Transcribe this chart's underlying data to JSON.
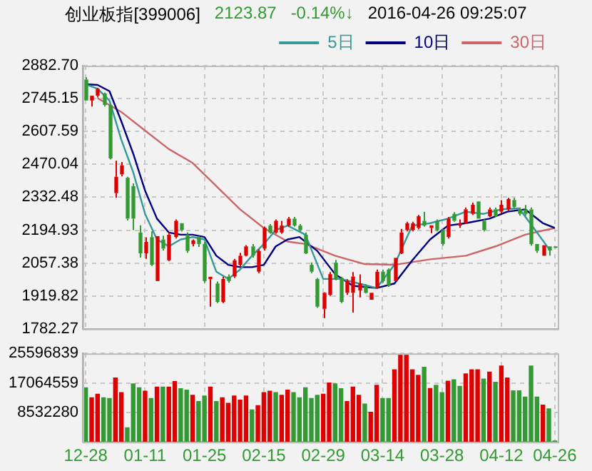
{
  "chart_data": [
    {
      "type": "candlestick",
      "title": "创业板指[399006]",
      "annotations": [
        "2123.87",
        "-0.14%↓",
        "2016-04-26 09:25:07"
      ],
      "ohlc": [
        [
          2825,
          2834,
          2737,
          2737
        ],
        [
          2737,
          2757,
          2712,
          2757
        ],
        [
          2757,
          2790,
          2750,
          2786
        ],
        [
          2766,
          2770,
          2712,
          2718
        ],
        [
          2718,
          2718,
          2490,
          2495
        ],
        [
          2350,
          2485,
          2331,
          2418
        ],
        [
          2428,
          2480,
          2420,
          2466
        ],
        [
          2414,
          2418,
          2235,
          2243
        ],
        [
          2379,
          2390,
          2195,
          2243
        ],
        [
          2185,
          2215,
          2080,
          2098
        ],
        [
          2098,
          2165,
          2075,
          2146
        ],
        [
          2166,
          2190,
          2045,
          2050
        ],
        [
          1982,
          2170,
          1982,
          2170
        ],
        [
          2156,
          2172,
          2110,
          2118
        ],
        [
          2069,
          2185,
          2065,
          2176
        ],
        [
          2166,
          2240,
          2160,
          2234
        ],
        [
          2224,
          2224,
          2190,
          2195
        ],
        [
          2176,
          2185,
          2100,
          2108
        ],
        [
          2137,
          2156,
          2127,
          2152
        ],
        [
          2166,
          2170,
          2125,
          2137
        ],
        [
          2137,
          2145,
          1975,
          1982
        ],
        [
          1990,
          2000,
          1875,
          2000
        ],
        [
          1972,
          1980,
          1890,
          1895
        ],
        [
          1895,
          2000,
          1890,
          1991
        ],
        [
          2001,
          2010,
          1975,
          1982
        ],
        [
          2001,
          2075,
          1995,
          2069
        ],
        [
          2050,
          2100,
          2040,
          2088
        ],
        [
          2088,
          2132,
          2085,
          2127
        ],
        [
          2127,
          2137,
          2080,
          2088
        ],
        [
          2021,
          2115,
          2015,
          2108
        ],
        [
          2118,
          2210,
          2110,
          2205
        ],
        [
          2214,
          2220,
          2180,
          2185
        ],
        [
          2185,
          2240,
          2180,
          2234
        ],
        [
          2185,
          2234,
          2180,
          2214
        ],
        [
          2214,
          2250,
          2210,
          2243
        ],
        [
          2243,
          2250,
          2210,
          2214
        ],
        [
          2214,
          2220,
          2190,
          2195
        ],
        [
          2176,
          2185,
          2095,
          2098
        ],
        [
          2050,
          2060,
          2015,
          2021
        ],
        [
          1991,
          1995,
          1870,
          1875
        ],
        [
          1866,
          1935,
          1827,
          1933
        ],
        [
          1924,
          2020,
          1920,
          2011
        ],
        [
          2059,
          2070,
          1985,
          1991
        ],
        [
          1995,
          2000,
          1890,
          1895
        ],
        [
          1933,
          1990,
          1925,
          1982
        ],
        [
          1933,
          2020,
          1850,
          2001
        ],
        [
          1943,
          2010,
          1914,
          1972
        ],
        [
          1962,
          1970,
          1930,
          1933
        ],
        [
          1904,
          1933,
          1904,
          1933
        ],
        [
          1953,
          2030,
          1950,
          2021
        ],
        [
          2021,
          2030,
          1975,
          1982
        ],
        [
          2030,
          2035,
          1958,
          1962
        ],
        [
          1982,
          2079,
          1982,
          2079
        ],
        [
          2098,
          2200,
          2095,
          2185
        ],
        [
          2195,
          2230,
          2190,
          2224
        ],
        [
          2195,
          2230,
          2190,
          2224
        ],
        [
          2204,
          2258,
          2198,
          2253
        ],
        [
          2234,
          2272,
          2210,
          2214
        ],
        [
          2204,
          2215,
          2182,
          2215
        ],
        [
          2234,
          2240,
          2190,
          2195
        ],
        [
          2195,
          2200,
          2130,
          2137
        ],
        [
          2166,
          2250,
          2160,
          2243
        ],
        [
          2263,
          2270,
          2230,
          2234
        ],
        [
          2214,
          2240,
          2205,
          2224
        ],
        [
          2224,
          2290,
          2220,
          2282
        ],
        [
          2263,
          2310,
          2258,
          2301
        ],
        [
          2315,
          2315,
          2243,
          2243
        ],
        [
          2234,
          2240,
          2190,
          2195
        ],
        [
          2253,
          2290,
          2250,
          2282
        ],
        [
          2282,
          2290,
          2250,
          2253
        ],
        [
          2272,
          2320,
          2265,
          2301
        ],
        [
          2282,
          2330,
          2275,
          2325
        ],
        [
          2321,
          2330,
          2288,
          2292
        ],
        [
          2282,
          2290,
          2255,
          2263
        ],
        [
          2282,
          2300,
          2255,
          2263
        ],
        [
          2282,
          2290,
          2130,
          2137
        ],
        [
          2137,
          2137,
          2100,
          2108
        ],
        [
          2088,
          2132,
          2088,
          2132
        ],
        [
          2127,
          2127,
          2088,
          2110
        ],
        [
          2127,
          2127,
          2120,
          2124
        ]
      ],
      "colors": [
        "#339933",
        "#dd0000",
        "#dd0000",
        "#339933",
        "#339933",
        "#dd0000",
        "#dd0000",
        "#339933",
        "#339933",
        "#339933",
        "#dd0000",
        "#339933",
        "#dd0000",
        "#339933",
        "#dd0000",
        "#dd0000",
        "#339933",
        "#339933",
        "#dd0000",
        "#339933",
        "#339933",
        "#dd0000",
        "#339933",
        "#dd0000",
        "#339933",
        "#dd0000",
        "#dd0000",
        "#dd0000",
        "#339933",
        "#dd0000",
        "#dd0000",
        "#339933",
        "#dd0000",
        "#dd0000",
        "#dd0000",
        "#339933",
        "#339933",
        "#339933",
        "#339933",
        "#339933",
        "#dd0000",
        "#dd0000",
        "#339933",
        "#339933",
        "#dd0000",
        "#dd0000",
        "#dd0000",
        "#339933",
        "#dd0000",
        "#dd0000",
        "#339933",
        "#339933",
        "#dd0000",
        "#dd0000",
        "#dd0000",
        "#dd0000",
        "#dd0000",
        "#339933",
        "#dd0000",
        "#339933",
        "#339933",
        "#dd0000",
        "#339933",
        "#dd0000",
        "#dd0000",
        "#dd0000",
        "#339933",
        "#339933",
        "#dd0000",
        "#339933",
        "#dd0000",
        "#dd0000",
        "#339933",
        "#339933",
        "#339933",
        "#339933",
        "#339933",
        "#dd0000",
        "#339933",
        "#339933"
      ],
      "series": [
        {
          "type": "line",
          "name": "5日",
          "color": "#339999",
          "values": [
            2805,
            null,
            2786,
            null,
            2737,
            null,
            2573,
            null,
            2437,
            null,
            2263,
            null,
            2156,
            null,
            2127,
            null,
            2156,
            null,
            2166,
            null,
            2156,
            null,
            2021,
            null,
            1991,
            null,
            2030,
            null,
            2088,
            null,
            2137,
            null,
            2195,
            null,
            2214,
            null,
            null,
            2176,
            null,
            null,
            1991,
            null,
            null,
            1991,
            null,
            null,
            1972,
            null,
            null,
            1953,
            null,
            null,
            2050,
            null,
            null,
            2214,
            null,
            null,
            2224,
            null,
            null,
            2243,
            null,
            null,
            2272,
            null,
            null,
            2263,
            null,
            null,
            2282,
            null,
            null,
            2286,
            null,
            null,
            2185,
            null,
            2117,
            null
          ]
        },
        {
          "type": "line",
          "name": "10日",
          "color": "#000080",
          "values": [
            2805,
            null,
            2802,
            null,
            2776,
            null,
            2650,
            null,
            2515,
            null,
            2360,
            null,
            2243,
            null,
            2185,
            null,
            2176,
            null,
            2176,
            null,
            2166,
            null,
            2088,
            null,
            2050,
            null,
            2040,
            null,
            2040,
            null,
            2050,
            null,
            2127,
            null,
            2156,
            null,
            2166,
            null,
            null,
            2108,
            null,
            null,
            2011,
            null,
            null,
            1962,
            null,
            null,
            null,
            1953,
            null,
            null,
            1972,
            null,
            null,
            2069,
            null,
            null,
            2156,
            null,
            null,
            2214,
            null,
            null,
            2224,
            null,
            null,
            null,
            2243,
            null,
            null,
            2272,
            null,
            null,
            2282,
            null,
            null,
            2224,
            null,
            2204
          ]
        },
        {
          "type": "line",
          "name": "30日",
          "color": "#cc6666",
          "values": [
            null,
            null,
            2747,
            null,
            null,
            null,
            2689,
            null,
            null,
            null,
            2611,
            null,
            null,
            null,
            2534,
            null,
            null,
            null,
            2476,
            null,
            null,
            null,
            2379,
            null,
            null,
            null,
            2282,
            null,
            null,
            null,
            2204,
            null,
            null,
            null,
            2147,
            null,
            null,
            2137,
            null,
            null,
            null,
            null,
            2088,
            null,
            null,
            null,
            null,
            2053,
            null,
            null,
            null,
            null,
            2050,
            null,
            null,
            null,
            null,
            null,
            2073,
            null,
            null,
            null,
            null,
            null,
            2088,
            null,
            null,
            null,
            null,
            2127,
            null,
            null,
            null,
            null,
            2176,
            null,
            null,
            null,
            null,
            2204
          ]
        }
      ],
      "ylim": [
        1782.27,
        2882.7
      ],
      "yticks": [
        1782.27,
        1919.82,
        2057.38,
        2194.93,
        2332.48,
        2470.04,
        2607.59,
        2745.15,
        {
          "value": 2882.7,
          "label": "2882.70"
        }
      ],
      "grid": true,
      "legend": "top right",
      "marker": "none"
    },
    {
      "type": "bar",
      "categories": [
        "12-28",
        null,
        null,
        null,
        null,
        null,
        null,
        null,
        null,
        null,
        "01-11",
        null,
        null,
        null,
        null,
        null,
        null,
        null,
        null,
        null,
        "01-25",
        null,
        null,
        null,
        null,
        null,
        null,
        null,
        null,
        null,
        "02-15",
        null,
        null,
        null,
        null,
        null,
        null,
        null,
        null,
        null,
        "02-29",
        null,
        null,
        null,
        null,
        null,
        null,
        null,
        null,
        null,
        "03-14",
        null,
        null,
        null,
        null,
        null,
        null,
        null,
        null,
        null,
        "03-28",
        null,
        null,
        null,
        null,
        null,
        null,
        null,
        null,
        null,
        "04-12",
        null,
        null,
        null,
        null,
        null,
        null,
        null,
        null,
        "04-26"
      ],
      "values": [
        15800000,
        12900000,
        13900000,
        12900000,
        12700000,
        18600000,
        14400000,
        4200000,
        16900000,
        15800000,
        14800000,
        12700000,
        16000000,
        16000000,
        16000000,
        17600000,
        15500000,
        15100000,
        13600000,
        11800000,
        13400000,
        16000000,
        11800000,
        12900000,
        11300000,
        13400000,
        12200000,
        13400000,
        9400000,
        10600000,
        14400000,
        14800000,
        14400000,
        13600000,
        15100000,
        14400000,
        12900000,
        15800000,
        12700000,
        13600000,
        13900000,
        17200000,
        16900000,
        15500000,
        11800000,
        16000000,
        13600000,
        11100000,
        8700000,
        16500000,
        12700000,
        12700000,
        21000000,
        25500000,
        25500000,
        21000000,
        19400000,
        21700000,
        15600000,
        16500000,
        14400000,
        17700000,
        18100000,
        16200000,
        19800000,
        21000000,
        21000000,
        18300000,
        20300000,
        17400000,
        22100000,
        18600000,
        14900000,
        14900000,
        13100000,
        22100000,
        13100000,
        10800000,
        9700000,
        400000
      ],
      "colors": [
        "#339933",
        "#dd0000",
        "#dd0000",
        "#339933",
        "#339933",
        "#dd0000",
        "#dd0000",
        "#339933",
        "#339933",
        "#339933",
        "#dd0000",
        "#339933",
        "#dd0000",
        "#339933",
        "#dd0000",
        "#dd0000",
        "#339933",
        "#339933",
        "#dd0000",
        "#339933",
        "#339933",
        "#dd0000",
        "#339933",
        "#dd0000",
        "#dd0000",
        "#dd0000",
        "#dd0000",
        "#dd0000",
        "#339933",
        "#dd0000",
        "#dd0000",
        "#dd0000",
        "#339933",
        "#dd0000",
        "#dd0000",
        "#339933",
        "#339933",
        "#339933",
        "#339933",
        "#339933",
        "#dd0000",
        "#dd0000",
        "#339933",
        "#339933",
        "#dd0000",
        "#dd0000",
        "#dd0000",
        "#339933",
        "#dd0000",
        "#dd0000",
        "#339933",
        "#339933",
        "#dd0000",
        "#dd0000",
        "#dd0000",
        "#dd0000",
        "#dd0000",
        "#339933",
        "#dd0000",
        "#339933",
        "#339933",
        "#dd0000",
        "#339933",
        "#339933",
        "#dd0000",
        "#dd0000",
        "#dd0000",
        "#339933",
        "#dd0000",
        "#339933",
        "#dd0000",
        "#dd0000",
        "#339933",
        "#339933",
        "#339933",
        "#339933",
        "#339933",
        "#dd0000",
        "#339933",
        "#339933"
      ],
      "ylim": [
        0,
        25596839
      ],
      "yticks": [
        8532280,
        17064559,
        25596839
      ],
      "grid": true
    }
  ]
}
